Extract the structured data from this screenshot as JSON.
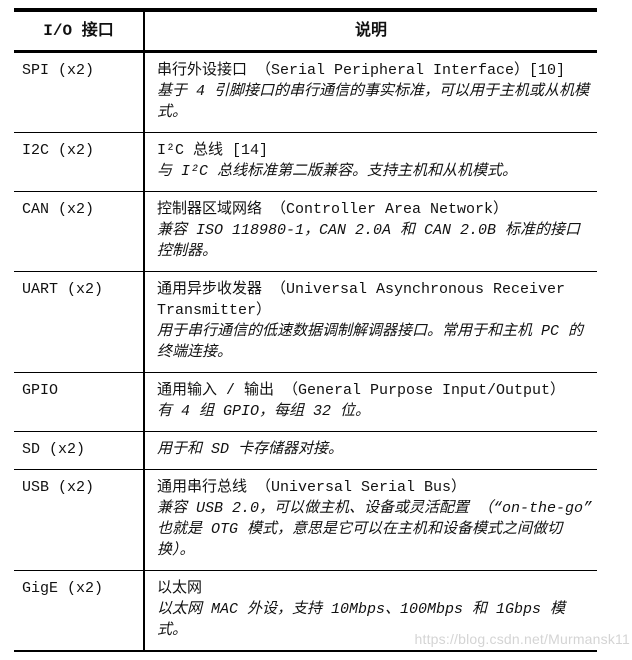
{
  "watermark": "https://blog.csdn.net/Murmansk11",
  "table": {
    "headers": [
      "I/O 接口",
      "说明"
    ],
    "rows": [
      {
        "interface": "SPI (x2)",
        "description": [
          {
            "text": "串行外设接口 （Serial Peripheral Interface）[10]",
            "italic": false
          },
          {
            "text": "基于 4 引脚接口的串行通信的事实标准，可以用于主机或从机模式。",
            "italic": true
          }
        ]
      },
      {
        "interface": "I2C (x2)",
        "description": [
          {
            "text": "I²C 总线 [14]",
            "italic": false
          },
          {
            "text": "与 I²C 总线标准第二版兼容。支持主机和从机模式。",
            "italic": true
          }
        ]
      },
      {
        "interface": "CAN (x2)",
        "description": [
          {
            "text": "控制器区域网络 （Controller Area Network）",
            "italic": false
          },
          {
            "text": "兼容 ISO 118980-1，CAN 2.0A 和 CAN 2.0B 标准的接口控制器。",
            "italic": true
          }
        ]
      },
      {
        "interface": "UART (x2)",
        "description": [
          {
            "text": "通用异步收发器 （Universal Asynchronous Receiver Transmitter）",
            "italic": false
          },
          {
            "text": "用于串行通信的低速数据调制解调器接口。常用于和主机 PC 的终端连接。",
            "italic": true
          }
        ]
      },
      {
        "interface": "GPIO",
        "description": [
          {
            "text": "通用输入 / 输出 （General Purpose Input/Output）",
            "italic": false
          },
          {
            "text": "有 4 组 GPIO，每组 32 位。",
            "italic": true
          }
        ]
      },
      {
        "interface": "SD (x2)",
        "description": [
          {
            "text": "用于和 SD 卡存储器对接。",
            "italic": true
          }
        ]
      },
      {
        "interface": "USB (x2)",
        "description": [
          {
            "text": "通用串行总线 （Universal Serial Bus）",
            "italic": false
          },
          {
            "text": "兼容 USB 2.0，可以做主机、设备或灵活配置 （“on-the-go” 也就是 OTG 模式，意思是它可以在主机和设备模式之间做切换）。",
            "italic": true
          }
        ]
      },
      {
        "interface": "GigE (x2)",
        "description": [
          {
            "text": "以太网",
            "italic": false
          },
          {
            "text": "以太网 MAC 外设，支持 10Mbps、100Mbps 和 1Gbps 模式。",
            "italic": true
          }
        ]
      }
    ]
  }
}
